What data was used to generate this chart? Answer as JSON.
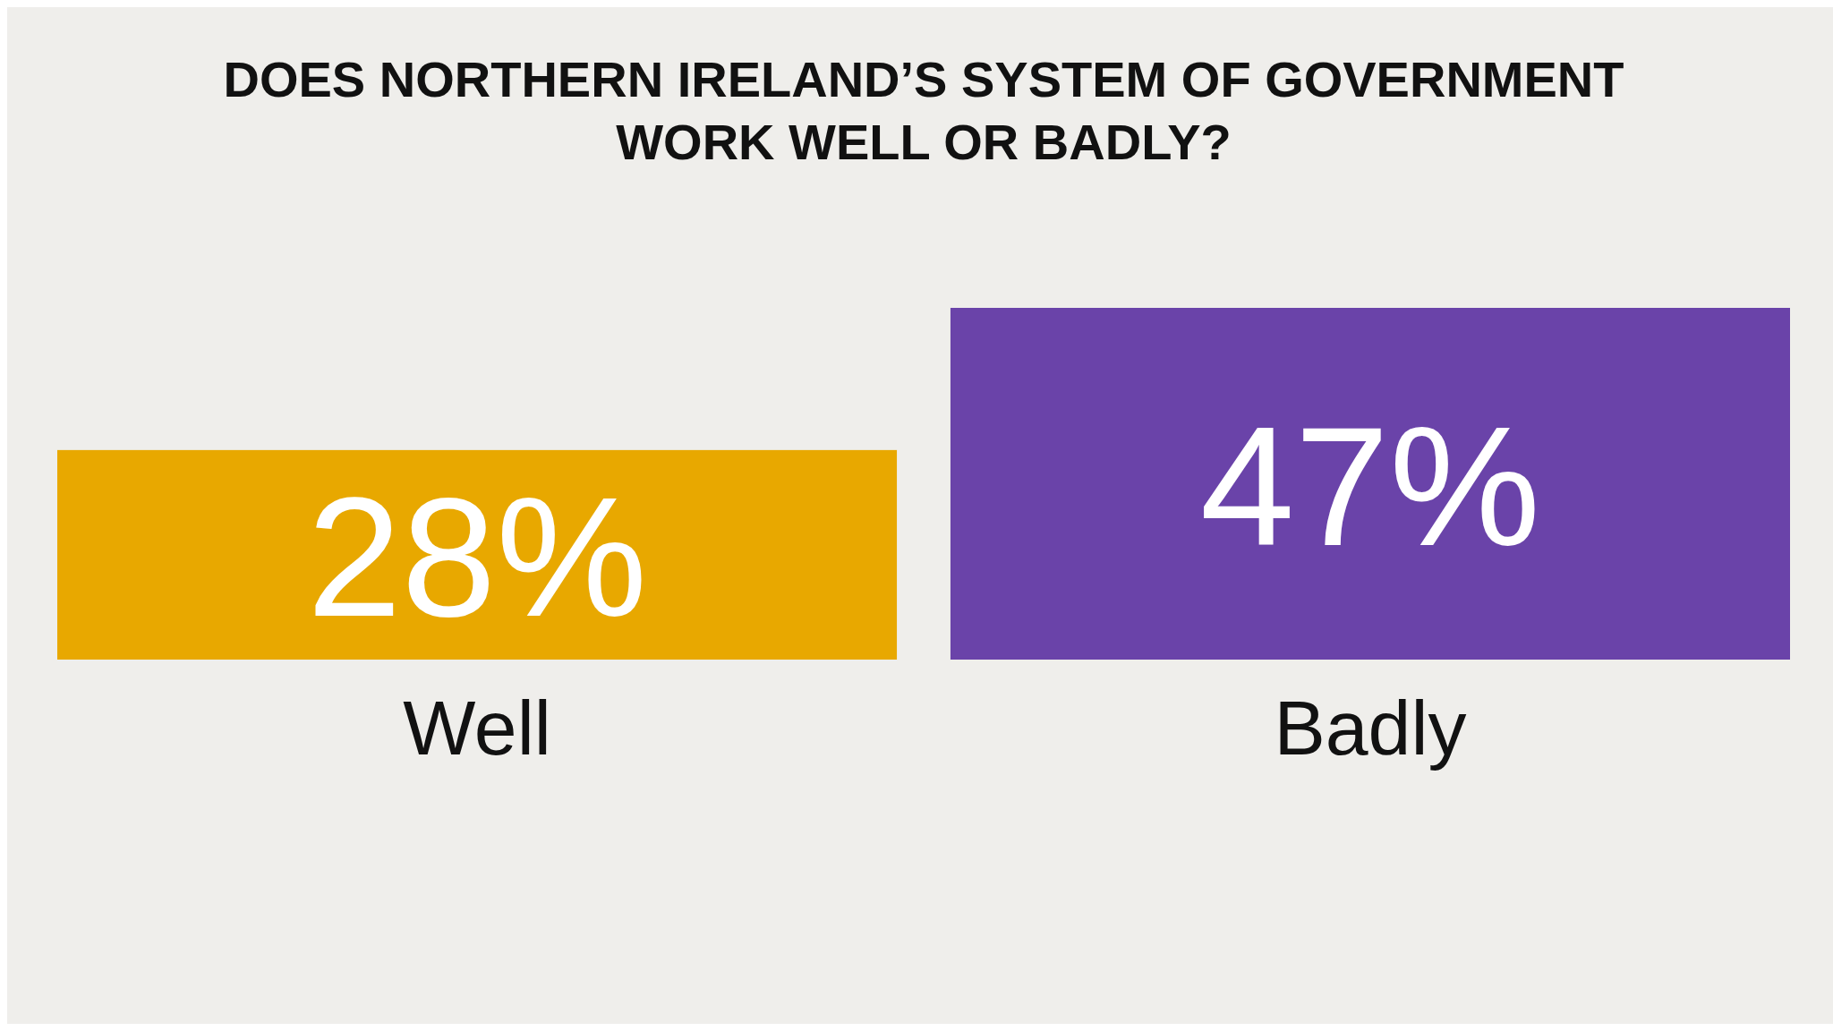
{
  "chart_data": {
    "type": "bar",
    "title": "DOES NORTHERN IRELAND’S SYSTEM OF GOVERNMENT WORK WELL OR BADLY?",
    "categories": [
      "Well",
      "Badly"
    ],
    "values": [
      28,
      47
    ],
    "colors": [
      "#e8a800",
      "#6a43a9"
    ],
    "value_labels": [
      "28%",
      "47%"
    ]
  }
}
